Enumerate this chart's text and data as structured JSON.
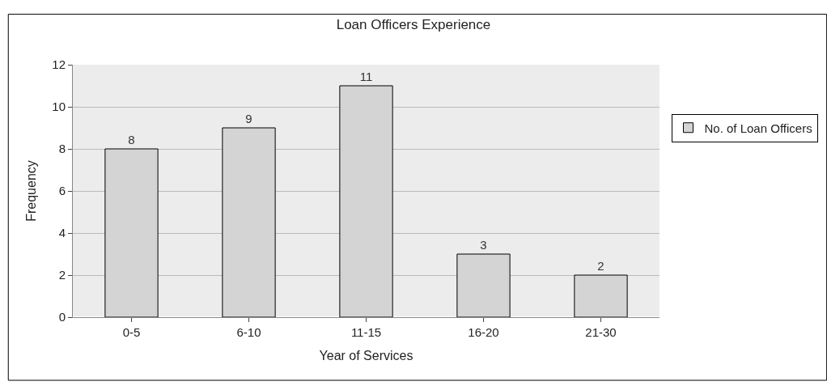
{
  "chart_data": {
    "type": "bar",
    "title": "Loan Officers Experience",
    "xlabel": "Year of Services",
    "ylabel": "Frequency",
    "categories": [
      "0-5",
      "6-10",
      "11-15",
      "16-20",
      "21-30"
    ],
    "series": [
      {
        "name": "No. of Loan Officers",
        "color": "#d4d4d4",
        "values": [
          8,
          9,
          11,
          3,
          2
        ]
      }
    ],
    "ylim": [
      0,
      12
    ],
    "yticks": [
      0,
      2,
      4,
      6,
      8,
      10,
      12
    ],
    "grid": "y",
    "legend": "right",
    "data_labels": true
  }
}
